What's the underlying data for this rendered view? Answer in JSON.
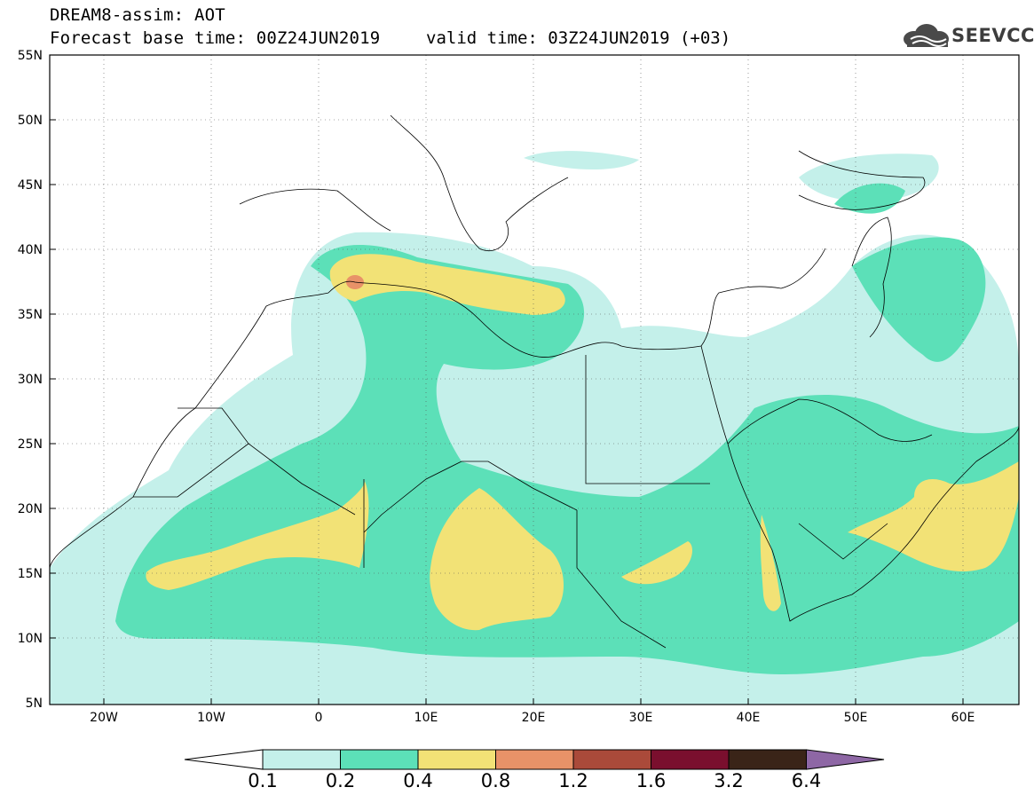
{
  "header": {
    "title": "DREAM8-assim: AOT",
    "base_time": "Forecast base time: 00Z24JUN2019",
    "valid_time": "valid time: 03Z24JUN2019 (+03)",
    "logo_text": "SEEVCCC"
  },
  "map": {
    "region": {
      "lon_range": [
        -25,
        65
      ],
      "lat_range": [
        5,
        55
      ]
    },
    "lat_ticks": [
      "55N",
      "50N",
      "45N",
      "40N",
      "35N",
      "30N",
      "25N",
      "20N",
      "15N",
      "10N",
      "5N"
    ],
    "lon_ticks": [
      "20W",
      "10W",
      "0",
      "10E",
      "20E",
      "30E",
      "40E",
      "50E",
      "60E"
    ],
    "grid": "dotted"
  },
  "colorbar": {
    "thresholds": [
      "0.1",
      "0.2",
      "0.4",
      "0.8",
      "1.2",
      "1.6",
      "3.2",
      "6.4"
    ],
    "colors": [
      "#c4f0ea",
      "#5ce0b8",
      "#f2e276",
      "#e89268",
      "#aa4a3a",
      "#7a0f2e",
      "#3a2418",
      "#8e67a5"
    ],
    "below_color": "#ffffff"
  }
}
